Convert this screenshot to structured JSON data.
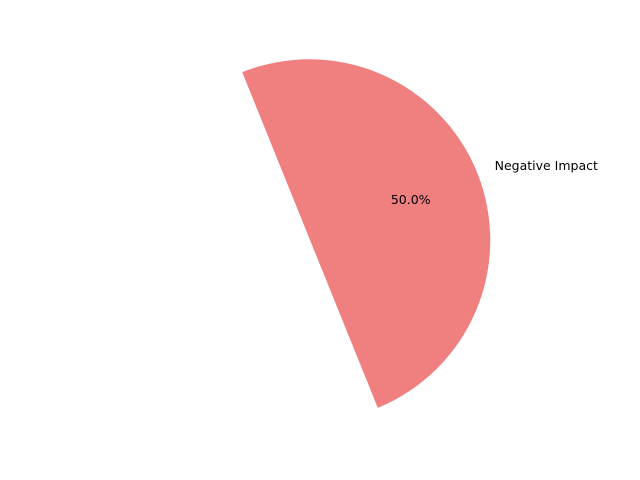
{
  "chart_data": {
    "type": "pie",
    "slices": [
      {
        "label": "",
        "value": 50,
        "pct_label": "",
        "color": "#ffffff"
      },
      {
        "label": "Negative Impact",
        "value": 50,
        "pct_label": "50.0%",
        "color": "#f08080"
      }
    ],
    "start_angle_deg": 112,
    "title": "",
    "legend": false
  }
}
